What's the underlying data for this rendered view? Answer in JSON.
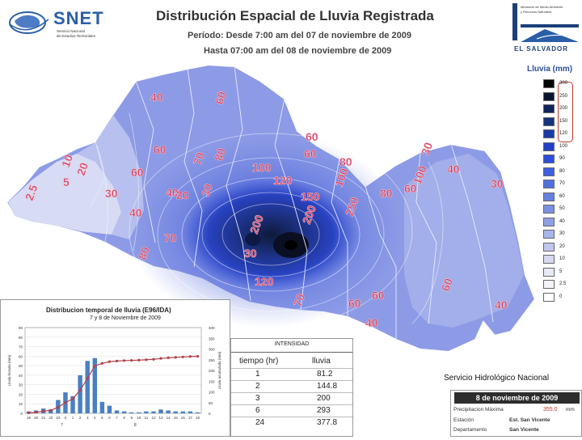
{
  "header": {
    "logo_text": "SNET",
    "logo_sub": [
      "Servicio Nacional",
      "de Estudios Territoriales"
    ],
    "title": "Distribución Espacial de Lluvia Registrada",
    "period_line1": "Período: Desde 7:00 am del 07 de noviembre de 2009",
    "period_line2": "Hasta 07:00 am del 08 de noviembre de 2009",
    "gov_lines": [
      "Ministerio de Medio Ambiente",
      "y Recursos Naturales"
    ],
    "gov_brand": "EL SALVADOR"
  },
  "legend": {
    "title": "Lluvia (mm)",
    "items": [
      {
        "label": "300",
        "color": "#000000"
      },
      {
        "label": "250",
        "color": "#0a1330"
      },
      {
        "label": "200",
        "color": "#10245a"
      },
      {
        "label": "150",
        "color": "#14347e"
      },
      {
        "label": "120",
        "color": "#1a3aa6"
      },
      {
        "label": "100",
        "color": "#2340c8"
      },
      {
        "label": "90",
        "color": "#2e4fd8"
      },
      {
        "label": "80",
        "color": "#3e5fe0"
      },
      {
        "label": "70",
        "color": "#5170e0"
      },
      {
        "label": "60",
        "color": "#6780e0"
      },
      {
        "label": "50",
        "color": "#7b90e2"
      },
      {
        "label": "40",
        "color": "#909fe4"
      },
      {
        "label": "30",
        "color": "#a9b4ea"
      },
      {
        "label": "20",
        "color": "#c1c8ef"
      },
      {
        "label": "10",
        "color": "#d6daf3"
      },
      {
        "label": "5",
        "color": "#e8eaf7"
      },
      {
        "label": "2.5",
        "color": "#f3f3fa"
      },
      {
        "label": "0",
        "color": "#ffffff"
      }
    ]
  },
  "isolines": [
    "40",
    "60",
    "60",
    "10",
    "20",
    "5",
    "2.5",
    "60",
    "30",
    "40",
    "40",
    "70",
    "80",
    "100",
    "60",
    "60",
    "80",
    "120",
    "150",
    "100",
    "200",
    "200",
    "250",
    "70",
    "120",
    "80",
    "80",
    "60",
    "100",
    "70",
    "60",
    "60",
    "40",
    "30",
    "40",
    "30",
    "60",
    "20",
    "30",
    "30",
    "40"
  ],
  "chart_data": {
    "type": "bar",
    "title": "Distribucion temporal de lluvia (E96/IDA)",
    "subtitle": "7 y 8 de Noviembre de 2009",
    "ylabel": "Lluvia horaria (mm)",
    "y2label": "Lluvia acumulada (mm)",
    "categories": [
      "19",
      "20",
      "21",
      "22",
      "23",
      "0",
      "1",
      "2",
      "3",
      "4",
      "5",
      "6",
      "7",
      "8",
      "9",
      "10",
      "11",
      "12",
      "13",
      "14",
      "15",
      "16",
      "17",
      "18"
    ],
    "group_labels": [
      "7",
      "8"
    ],
    "series": [
      {
        "values": [
          2,
          3,
          5,
          4,
          14,
          22,
          18,
          40,
          55,
          58,
          12,
          8,
          3,
          2,
          1,
          1,
          2,
          2,
          4,
          3,
          2,
          2,
          2,
          1
        ]
      },
      {
        "values": [
          2,
          5,
          10,
          14,
          28,
          50,
          68,
          108,
          163,
          221,
          233,
          241,
          244,
          246,
          247,
          248,
          250,
          252,
          256,
          259,
          261,
          263,
          265,
          266
        ]
      }
    ],
    "ylim": [
      0,
      90
    ],
    "y2lim": [
      0,
      400
    ],
    "yticks": [
      "0",
      "10",
      "20",
      "30",
      "40",
      "50",
      "60",
      "70",
      "80",
      "90"
    ],
    "y2ticks": [
      "0",
      "50",
      "100",
      "150",
      "200",
      "250",
      "300",
      "350",
      "400"
    ]
  },
  "intensity": {
    "title": "INTENSIDAD",
    "headers": [
      "tiempo (hr)",
      "lluvia"
    ],
    "rows": [
      [
        "1",
        "81.2"
      ],
      [
        "2",
        "144.8"
      ],
      [
        "3",
        "200"
      ],
      [
        "6",
        "293"
      ],
      [
        "24",
        "377.8"
      ]
    ]
  },
  "credit": "Servicio Hidrológico Nacional",
  "day_panel": {
    "date": "8 de noviembre de 2009",
    "rows": [
      {
        "key": "Precipitacion Máxima",
        "value": ""
      },
      {
        "key": "Estación",
        "value": "Est. San Vicente"
      },
      {
        "key": "Departamento",
        "value": "San Vicente"
      }
    ],
    "max_value": "355.0",
    "unit": "mm"
  }
}
